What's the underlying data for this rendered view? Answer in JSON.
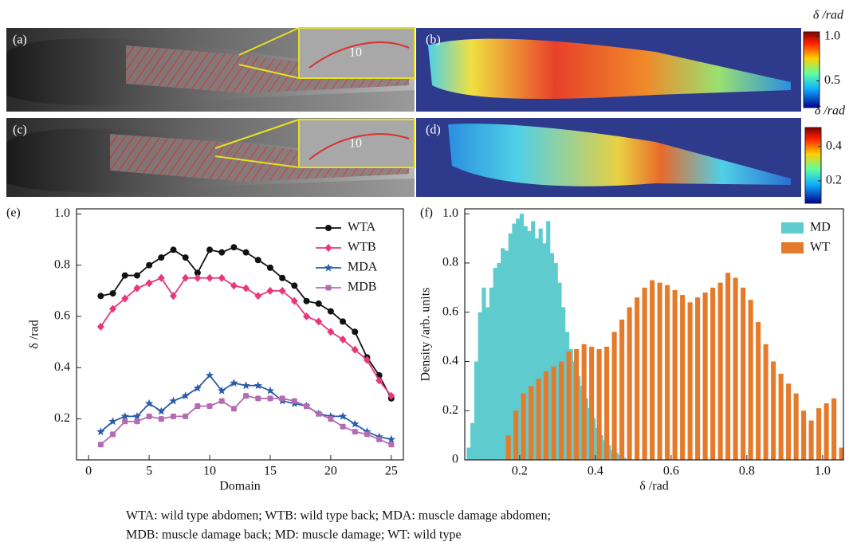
{
  "panels": [
    {
      "label": "(a)",
      "inset_label": "10"
    },
    {
      "label": "(b)",
      "colorbar": {
        "title": "δ /rad",
        "range": [
          0.2,
          1.05
        ],
        "ticks": [
          {
            "value": 1,
            "label": "1.0"
          },
          0.5
        ]
      }
    },
    {
      "label": "(c)",
      "inset_label": "10"
    },
    {
      "label": "(d)",
      "colorbar": {
        "title": "δ /rad",
        "range": [
          0.07,
          0.51
        ],
        "ticks": [
          0.4,
          0.2
        ]
      }
    }
  ],
  "chart_data": [
    {
      "type": "line",
      "panel_label": "(e)",
      "x_label": "Domain",
      "y_label": "δ /rad",
      "x": [
        1,
        2,
        3,
        4,
        5,
        6,
        7,
        8,
        9,
        10,
        11,
        12,
        13,
        14,
        15,
        16,
        17,
        18,
        19,
        20,
        21,
        22,
        23,
        24,
        25
      ],
      "series": [
        {
          "name": "WTA",
          "color": "#111111",
          "marker": "circle",
          "values": [
            0.68,
            0.69,
            0.76,
            0.76,
            0.8,
            0.83,
            0.86,
            0.83,
            0.77,
            0.86,
            0.85,
            0.87,
            0.85,
            0.82,
            0.79,
            0.75,
            0.72,
            0.66,
            0.65,
            0.62,
            0.58,
            0.54,
            0.44,
            0.37,
            0.28
          ]
        },
        {
          "name": "WTB",
          "color": "#e8377a",
          "marker": "diamond",
          "values": [
            0.56,
            0.63,
            0.67,
            0.71,
            0.73,
            0.75,
            0.68,
            0.75,
            0.75,
            0.75,
            0.75,
            0.72,
            0.71,
            0.68,
            0.7,
            0.7,
            0.66,
            0.6,
            0.58,
            0.54,
            0.51,
            0.47,
            0.43,
            0.35,
            0.29
          ]
        },
        {
          "name": "MDA",
          "color": "#2a5ca8",
          "marker": "star",
          "values": [
            0.15,
            0.19,
            0.21,
            0.21,
            0.26,
            0.23,
            0.27,
            0.29,
            0.32,
            0.37,
            0.31,
            0.34,
            0.33,
            0.33,
            0.31,
            0.27,
            0.26,
            0.25,
            0.22,
            0.21,
            0.21,
            0.18,
            0.15,
            0.13,
            0.12
          ]
        },
        {
          "name": "MDB",
          "color": "#b36bb3",
          "marker": "square",
          "values": [
            0.1,
            0.14,
            0.19,
            0.19,
            0.21,
            0.2,
            0.21,
            0.21,
            0.25,
            0.25,
            0.27,
            0.24,
            0.29,
            0.28,
            0.28,
            0.28,
            0.27,
            0.25,
            0.22,
            0.2,
            0.17,
            0.15,
            0.14,
            0.12,
            0.1
          ]
        }
      ],
      "xlim": [
        -1,
        26
      ],
      "xticks": [
        0,
        5,
        10,
        15,
        20,
        25
      ],
      "ylim": [
        0.04,
        1.02
      ],
      "yticks": [
        0.2,
        0.4,
        0.6,
        0.8,
        {
          "value": 1,
          "label": "1.0"
        }
      ],
      "legend": "upper right"
    },
    {
      "type": "histogram",
      "panel_label": "(f)",
      "x_label": "δ /rad",
      "y_label": "Density /arb. units",
      "series": [
        {
          "name": "MD",
          "color": "#5ecbcf",
          "bins": [
            0.06,
            0.07,
            0.08,
            0.09,
            0.1,
            0.11,
            0.12,
            0.13,
            0.14,
            0.15,
            0.16,
            0.17,
            0.18,
            0.19,
            0.2,
            0.21,
            0.22,
            0.23,
            0.24,
            0.25,
            0.26,
            0.27,
            0.28,
            0.29,
            0.3,
            0.31,
            0.32,
            0.33,
            0.34,
            0.35,
            0.36,
            0.37,
            0.38,
            0.39,
            0.4,
            0.41,
            0.42,
            0.43,
            0.44,
            0.45,
            0.46,
            0.47,
            0.48
          ],
          "values": [
            0.05,
            0.15,
            0.4,
            0.6,
            0.7,
            0.62,
            0.7,
            0.78,
            0.8,
            0.86,
            0.85,
            0.92,
            0.96,
            0.98,
            1.0,
            0.95,
            0.93,
            0.97,
            0.9,
            0.94,
            0.88,
            0.97,
            0.84,
            0.8,
            0.72,
            0.62,
            0.52,
            0.45,
            0.4,
            0.34,
            0.3,
            0.25,
            0.21,
            0.17,
            0.13,
            0.1,
            0.08,
            0.06,
            0.04,
            0.03,
            0.02,
            0.01
          ]
        },
        {
          "name": "WT",
          "color": "#e57a2a",
          "bins": [
            0.16,
            0.18,
            0.2,
            0.22,
            0.24,
            0.26,
            0.28,
            0.3,
            0.32,
            0.34,
            0.36,
            0.38,
            0.4,
            0.42,
            0.44,
            0.46,
            0.48,
            0.5,
            0.52,
            0.54,
            0.56,
            0.58,
            0.6,
            0.62,
            0.64,
            0.66,
            0.68,
            0.7,
            0.72,
            0.74,
            0.76,
            0.78,
            0.8,
            0.82,
            0.84,
            0.86,
            0.88,
            0.9,
            0.92,
            0.94,
            0.96,
            0.98,
            1.0,
            1.02,
            1.04,
            1.06
          ],
          "values": [
            0.1,
            0.2,
            0.27,
            0.3,
            0.33,
            0.36,
            0.38,
            0.4,
            0.44,
            0.45,
            0.47,
            0.46,
            0.45,
            0.46,
            0.52,
            0.57,
            0.62,
            0.66,
            0.7,
            0.73,
            0.72,
            0.71,
            0.69,
            0.67,
            0.64,
            0.66,
            0.68,
            0.7,
            0.72,
            0.76,
            0.74,
            0.7,
            0.65,
            0.56,
            0.47,
            0.4,
            0.35,
            0.31,
            0.27,
            0.2,
            0.16,
            0.21,
            0.23,
            0.25,
            0.05
          ]
        }
      ],
      "xlim": [
        0.055,
        1.055
      ],
      "xticks": [
        0.2,
        0.4,
        0.6,
        0.8,
        {
          "value": 1,
          "label": "1.0"
        }
      ],
      "ylim": [
        0,
        1.02
      ],
      "yticks": [
        0,
        0.2,
        0.4,
        0.6,
        0.8,
        {
          "value": 1,
          "label": "1.0"
        }
      ],
      "legend": "upper right"
    }
  ],
  "caption": [
    "WTA: wild type abdomen; WTB: wild type back; MDA: muscle damage abdomen;",
    "MDB: muscle damage back; MD: muscle damage; WT: wild type"
  ]
}
